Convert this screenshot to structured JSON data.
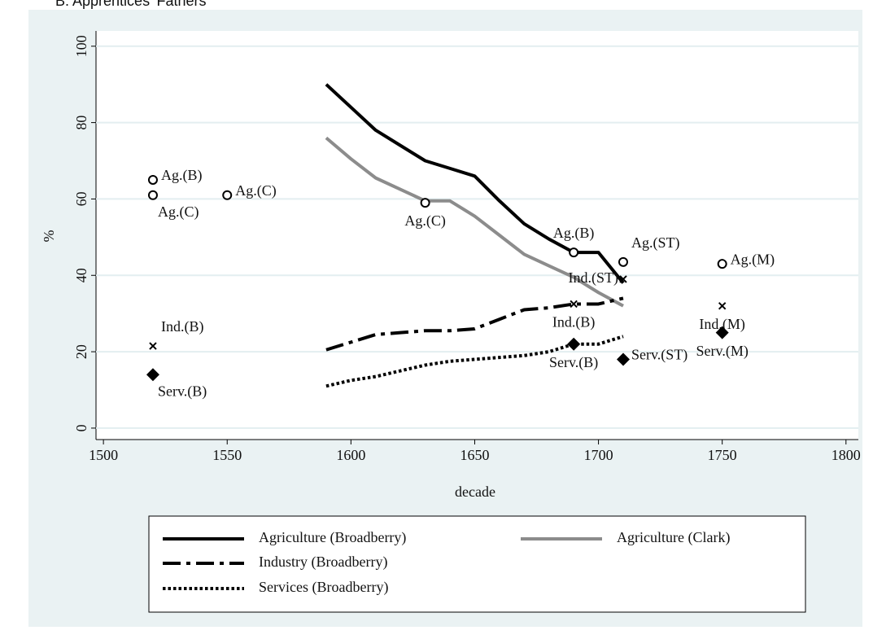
{
  "chart_data": {
    "type": "line",
    "title": "B.   Apprentices' Fathers",
    "xlabel": "decade",
    "ylabel": "%",
    "x": [
      1590,
      1600,
      1610,
      1620,
      1630,
      1640,
      1650,
      1660,
      1670,
      1680,
      1690,
      1700,
      1710
    ],
    "series": [
      {
        "name": "Agriculture (Broadberry)",
        "color": "#000000",
        "style": "solid",
        "values": [
          90,
          84,
          78,
          74,
          70,
          68,
          66,
          59.5,
          53.5,
          49.5,
          46,
          46,
          38
        ]
      },
      {
        "name": "Agriculture (Clark)",
        "color": "#8c8c8c",
        "style": "solid",
        "values": [
          76,
          70.5,
          65.5,
          62.5,
          59.5,
          59.5,
          55.5,
          50.5,
          45.5,
          42.5,
          39.5,
          35.5,
          32
        ]
      },
      {
        "name": "Industry (Broadberry)",
        "color": "#000000",
        "style": "dashdot",
        "values": [
          20.5,
          22.5,
          24.5,
          25,
          25.5,
          25.5,
          26,
          28.5,
          31,
          31.5,
          32.5,
          32.5,
          34
        ]
      },
      {
        "name": "Services (Broadberry)",
        "color": "#000000",
        "style": "dotted",
        "values": [
          11,
          12.5,
          13.5,
          15,
          16.5,
          17.5,
          18,
          18.5,
          19,
          20,
          22,
          22,
          24
        ]
      }
    ],
    "points": [
      {
        "x": 1520,
        "y": 65,
        "marker": "circle",
        "label": "Ag.(B)",
        "position": "right"
      },
      {
        "x": 1520,
        "y": 61,
        "marker": "circle",
        "label": "Ag.(C)",
        "position": "below-right"
      },
      {
        "x": 1550,
        "y": 61,
        "marker": "circle",
        "label": "Ag.(C)",
        "position": "right"
      },
      {
        "x": 1630,
        "y": 59,
        "marker": "circle",
        "label": "Ag.(C)",
        "position": "below"
      },
      {
        "x": 1690,
        "y": 46,
        "marker": "circle",
        "label": "Ag.(B)",
        "position": "above"
      },
      {
        "x": 1710,
        "y": 43.5,
        "marker": "circle",
        "label": "Ag.(ST)",
        "position": "above-right"
      },
      {
        "x": 1750,
        "y": 43,
        "marker": "circle",
        "label": "Ag.(M)",
        "position": "right"
      },
      {
        "x": 1520,
        "y": 21.5,
        "marker": "x",
        "label": "Ind.(B)",
        "position": "above-right"
      },
      {
        "x": 1690,
        "y": 32.5,
        "marker": "x",
        "label": "Ind.(B)",
        "position": "below"
      },
      {
        "x": 1710,
        "y": 39,
        "marker": "x",
        "label": "Ind.(ST)",
        "position": "left"
      },
      {
        "x": 1750,
        "y": 32,
        "marker": "x",
        "label": "Ind.(M)",
        "position": "below"
      },
      {
        "x": 1520,
        "y": 14,
        "marker": "diamond",
        "label": "Serv.(B)",
        "position": "below-right"
      },
      {
        "x": 1690,
        "y": 22,
        "marker": "diamond",
        "label": "Serv.(B)",
        "position": "below"
      },
      {
        "x": 1710,
        "y": 18,
        "marker": "diamond",
        "label": "Serv.(ST)",
        "position": "right"
      },
      {
        "x": 1750,
        "y": 25,
        "marker": "diamond",
        "label": "Serv.(M)",
        "position": "below"
      }
    ],
    "xlim": [
      1497,
      1805
    ],
    "xticks": [
      1500,
      1550,
      1600,
      1650,
      1700,
      1750,
      1800
    ],
    "ylim": [
      -3,
      104
    ],
    "yticks": [
      0,
      20,
      40,
      60,
      80,
      100
    ],
    "grid": true
  }
}
